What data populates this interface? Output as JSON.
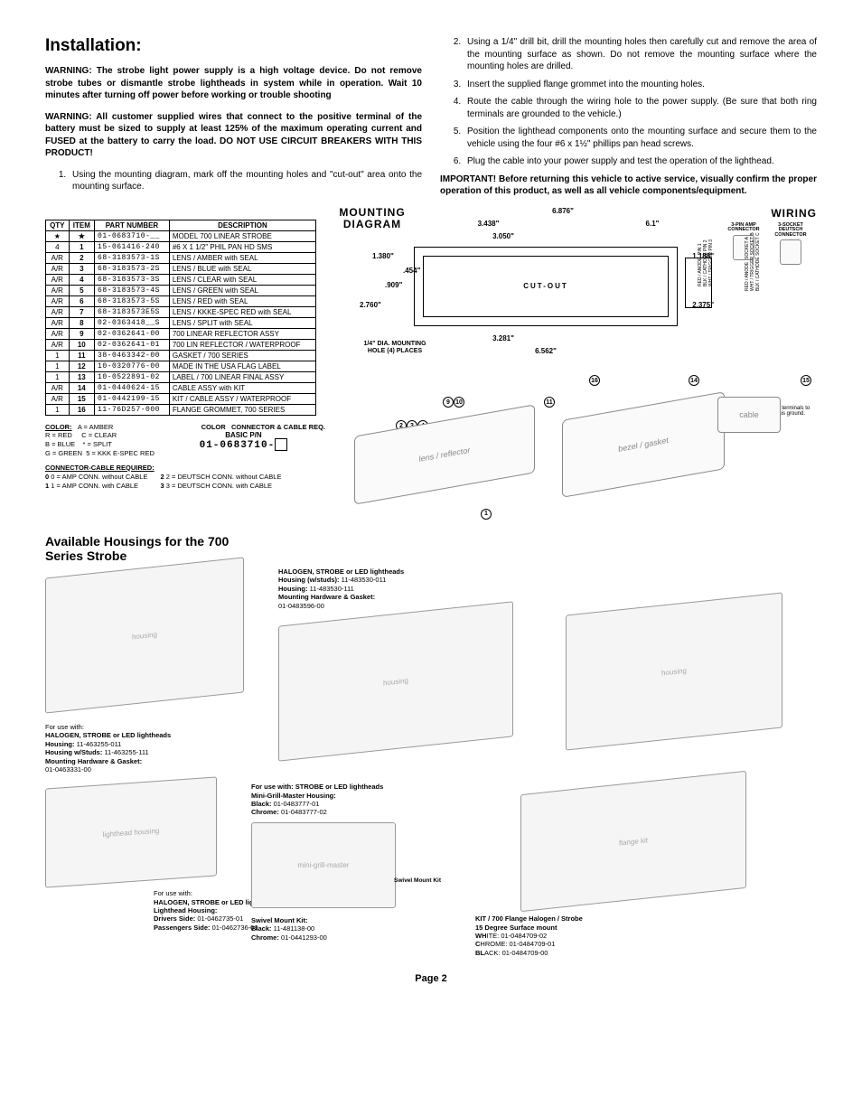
{
  "title": "Installation:",
  "warnings": {
    "w1": "WARNING: The strobe light power supply is a high voltage device. Do not remove strobe tubes or dismantle strobe lightheads in system while in operation. Wait 10 minutes after turning off power before working or trouble shooting",
    "w2": "WARNING: All customer supplied wires that connect to the positive terminal of the battery must be sized to supply at least 125% of the maximum operating current and FUSED at the battery to carry the load. DO NOT USE CIRCUIT BREAKERS WITH THIS PRODUCT!"
  },
  "steps": {
    "s1": "Using the mounting diagram, mark off the mounting holes and \"cut-out\" area onto the mounting surface.",
    "s2": "Using a 1/4\" drill bit, drill the mounting holes then carefully cut and remove the area of the mounting surface as shown. Do not remove the mounting surface where the mounting holes are drilled.",
    "s3": "Insert the supplied flange grommet into the mounting holes.",
    "s4": "Route the cable through the wiring hole to the power supply. (Be sure that both ring terminals are grounded to the vehicle.)",
    "s5": "Position the lighthead components onto the mounting surface and secure them to the vehicle using the four #6 x 1½\" phillips pan head screws.",
    "s6": "Plug the cable into your power supply and test the operation of the lighthead."
  },
  "important": "IMPORTANT! Before returning this vehicle to active service, visually confirm the proper operation of this product, as well as all vehicle components/equipment.",
  "parts": {
    "headers": {
      "qty": "QTY",
      "item": "ITEM",
      "pn": "PART NUMBER",
      "desc": "DESCRIPTION"
    },
    "rows": [
      {
        "qty": "★",
        "item": "★",
        "pn": "01-0683710-__",
        "desc": "MODEL 700 LINEAR STROBE"
      },
      {
        "qty": "4",
        "item": "1",
        "pn": "15-061416-240",
        "desc": "#6 X 1 1/2\" PHIL PAN HD SMS"
      },
      {
        "qty": "A/R",
        "item": "2",
        "pn": "68-3183573-1S",
        "desc": "LENS / AMBER with SEAL"
      },
      {
        "qty": "A/R",
        "item": "3",
        "pn": "68-3183573-2S",
        "desc": "LENS / BLUE with SEAL"
      },
      {
        "qty": "A/R",
        "item": "4",
        "pn": "68-3183573-3S",
        "desc": "LENS / CLEAR with SEAL"
      },
      {
        "qty": "A/R",
        "item": "5",
        "pn": "68-3183573-4S",
        "desc": "LENS / GREEN with SEAL"
      },
      {
        "qty": "A/R",
        "item": "6",
        "pn": "68-3183573-5S",
        "desc": "LENS / RED with SEAL"
      },
      {
        "qty": "A/R",
        "item": "7",
        "pn": "68-3183573E5S",
        "desc": "LENS / KKKE-SPEC RED with SEAL"
      },
      {
        "qty": "A/R",
        "item": "8",
        "pn": "02-0363418__S",
        "desc": "LENS / SPLIT with SEAL"
      },
      {
        "qty": "A/R",
        "item": "9",
        "pn": "02-0362641-00",
        "desc": "700 LINEAR REFLECTOR ASSY"
      },
      {
        "qty": "A/R",
        "item": "10",
        "pn": "02-0362641-01",
        "desc": "700 LIN REFLECTOR / WATERPROOF"
      },
      {
        "qty": "1",
        "item": "11",
        "pn": "38-0463342-00",
        "desc": "GASKET / 700 SERIES"
      },
      {
        "qty": "1",
        "item": "12",
        "pn": "10-0320776-00",
        "desc": "MADE IN THE USA FLAG LABEL"
      },
      {
        "qty": "1",
        "item": "13",
        "pn": "10-0522891-02",
        "desc": "LABEL / 700 LINEAR FINAL ASSY"
      },
      {
        "qty": "A/R",
        "item": "14",
        "pn": "01-0440624-15",
        "desc": "CABLE ASSY with KIT"
      },
      {
        "qty": "A/R",
        "item": "15",
        "pn": "01-0442199-15",
        "desc": "KIT / CABLE ASSY / WATERPROOF"
      },
      {
        "qty": "1",
        "item": "16",
        "pn": "11-76D257-000",
        "desc": "FLANGE GROMMET, 700 SERIES"
      }
    ]
  },
  "colorLegend": {
    "title": "COLOR:",
    "items": {
      "a": "A = AMBER",
      "r": "R = RED",
      "c": "C = CLEAR",
      "b": "B = BLUE",
      "s": "* = SPLIT",
      "g": "G = GREEN",
      "five": "5 = KKK E-SPEC RED"
    }
  },
  "basicPn": {
    "t1": "BASIC P/N",
    "pn": "01-0683710-",
    "t2": "COLOR",
    "t3": "CONNECTOR & CABLE REQ."
  },
  "cableReq": {
    "title": "CONNECTOR-CABLE REQUIRED:",
    "r0": "0 = AMP CONN. without CABLE",
    "r1": "1 = AMP CONN. with CABLE",
    "r2": "2 = DEUTSCH CONN. without CABLE",
    "r3": "3 = DEUTSCH CONN. with CABLE"
  },
  "mounting": {
    "title": "MOUNTING DIAGRAM",
    "d1": "6.876\"",
    "d2": "3.438\"",
    "d3": "3.050\"",
    "d4": "6.1\"",
    "d5": "1.380\"",
    "d6": ".454\"",
    "d7": ".909\"",
    "d8": "2.760\"",
    "d9": "1.188\"",
    "d10": "2.375\"",
    "cut": "CUT-OUT",
    "hole": "1/4\" DIA. MOUNTING HOLE (4) PLACES",
    "d11": "3.281\"",
    "d12": "6.562\""
  },
  "wiring": {
    "title": "WIRING",
    "amp": "3-PIN AMP CONNECTOR",
    "deutsch": "3-SOCKET DEUTSCH CONNECTOR",
    "pins": "RED / ANODE  PIN 1\nBLK / CATHODE PIN 2\nWHT / TRIGGER PIN 3",
    "sockets": "RED / ANODE  SOCKET A\nWHT / TRIGGER SOCKET B\nBLK / CATHODE SOCKET C",
    "tie": "Tie ring terminals to chassis ground."
  },
  "housings": {
    "title": "Available Housings for the 700 Series Strobe",
    "h1": {
      "a": "For use with:",
      "b": "HALOGEN, STROBE or LED lightheads",
      "c": "Housing:",
      "c2": "11-463255-011",
      "d": "Housing w/Studs:",
      "d2": "11-463255-111",
      "e": "Mounting Hardware & Gasket:",
      "e2": "01-0463331-00"
    },
    "h2": {
      "a": "HALOGEN, STROBE or LED lightheads",
      "b": "Housing (w/studs):",
      "b2": "11-483530-011",
      "c": "Housing:",
      "c2": "11-483530-111",
      "d": "Mounting Hardware & Gasket:",
      "d2": "01-0483596-00"
    },
    "h3": {
      "a": "For use with: STROBE or LED lightheads",
      "b": "Mini-Grill-Master Housing:",
      "c": "Black:",
      "c2": "01-0483777-01",
      "d": "Chrome:",
      "d2": "01-0483777-02"
    },
    "h4": {
      "a": "For use with:",
      "b": "HALOGEN, STROBE or LED lightheads",
      "c": "Lighthead Housing:",
      "d": "Drivers Side:",
      "d2": "01-0462735-01",
      "e": "Passengers Side:",
      "e2": "01-0462736-01"
    },
    "h5": {
      "a": "Swivel Mount Kit:",
      "b": "Black:",
      "b2": "11-481138-00",
      "c": "Chrome:",
      "c2": "01-0441293-00",
      "sw": "Swivel Mount Kit"
    },
    "h6": {
      "a": "KIT / 700 Flange Halogen / Strobe",
      "b": "15 Degree Surface mount",
      "c": "WHITE:",
      "c2": "01-0484709-02",
      "d": "CHROME:",
      "d2": "01-0484709-01",
      "e": "BLACK:",
      "e2": "01-0484709-00"
    }
  },
  "page": "Page 2"
}
